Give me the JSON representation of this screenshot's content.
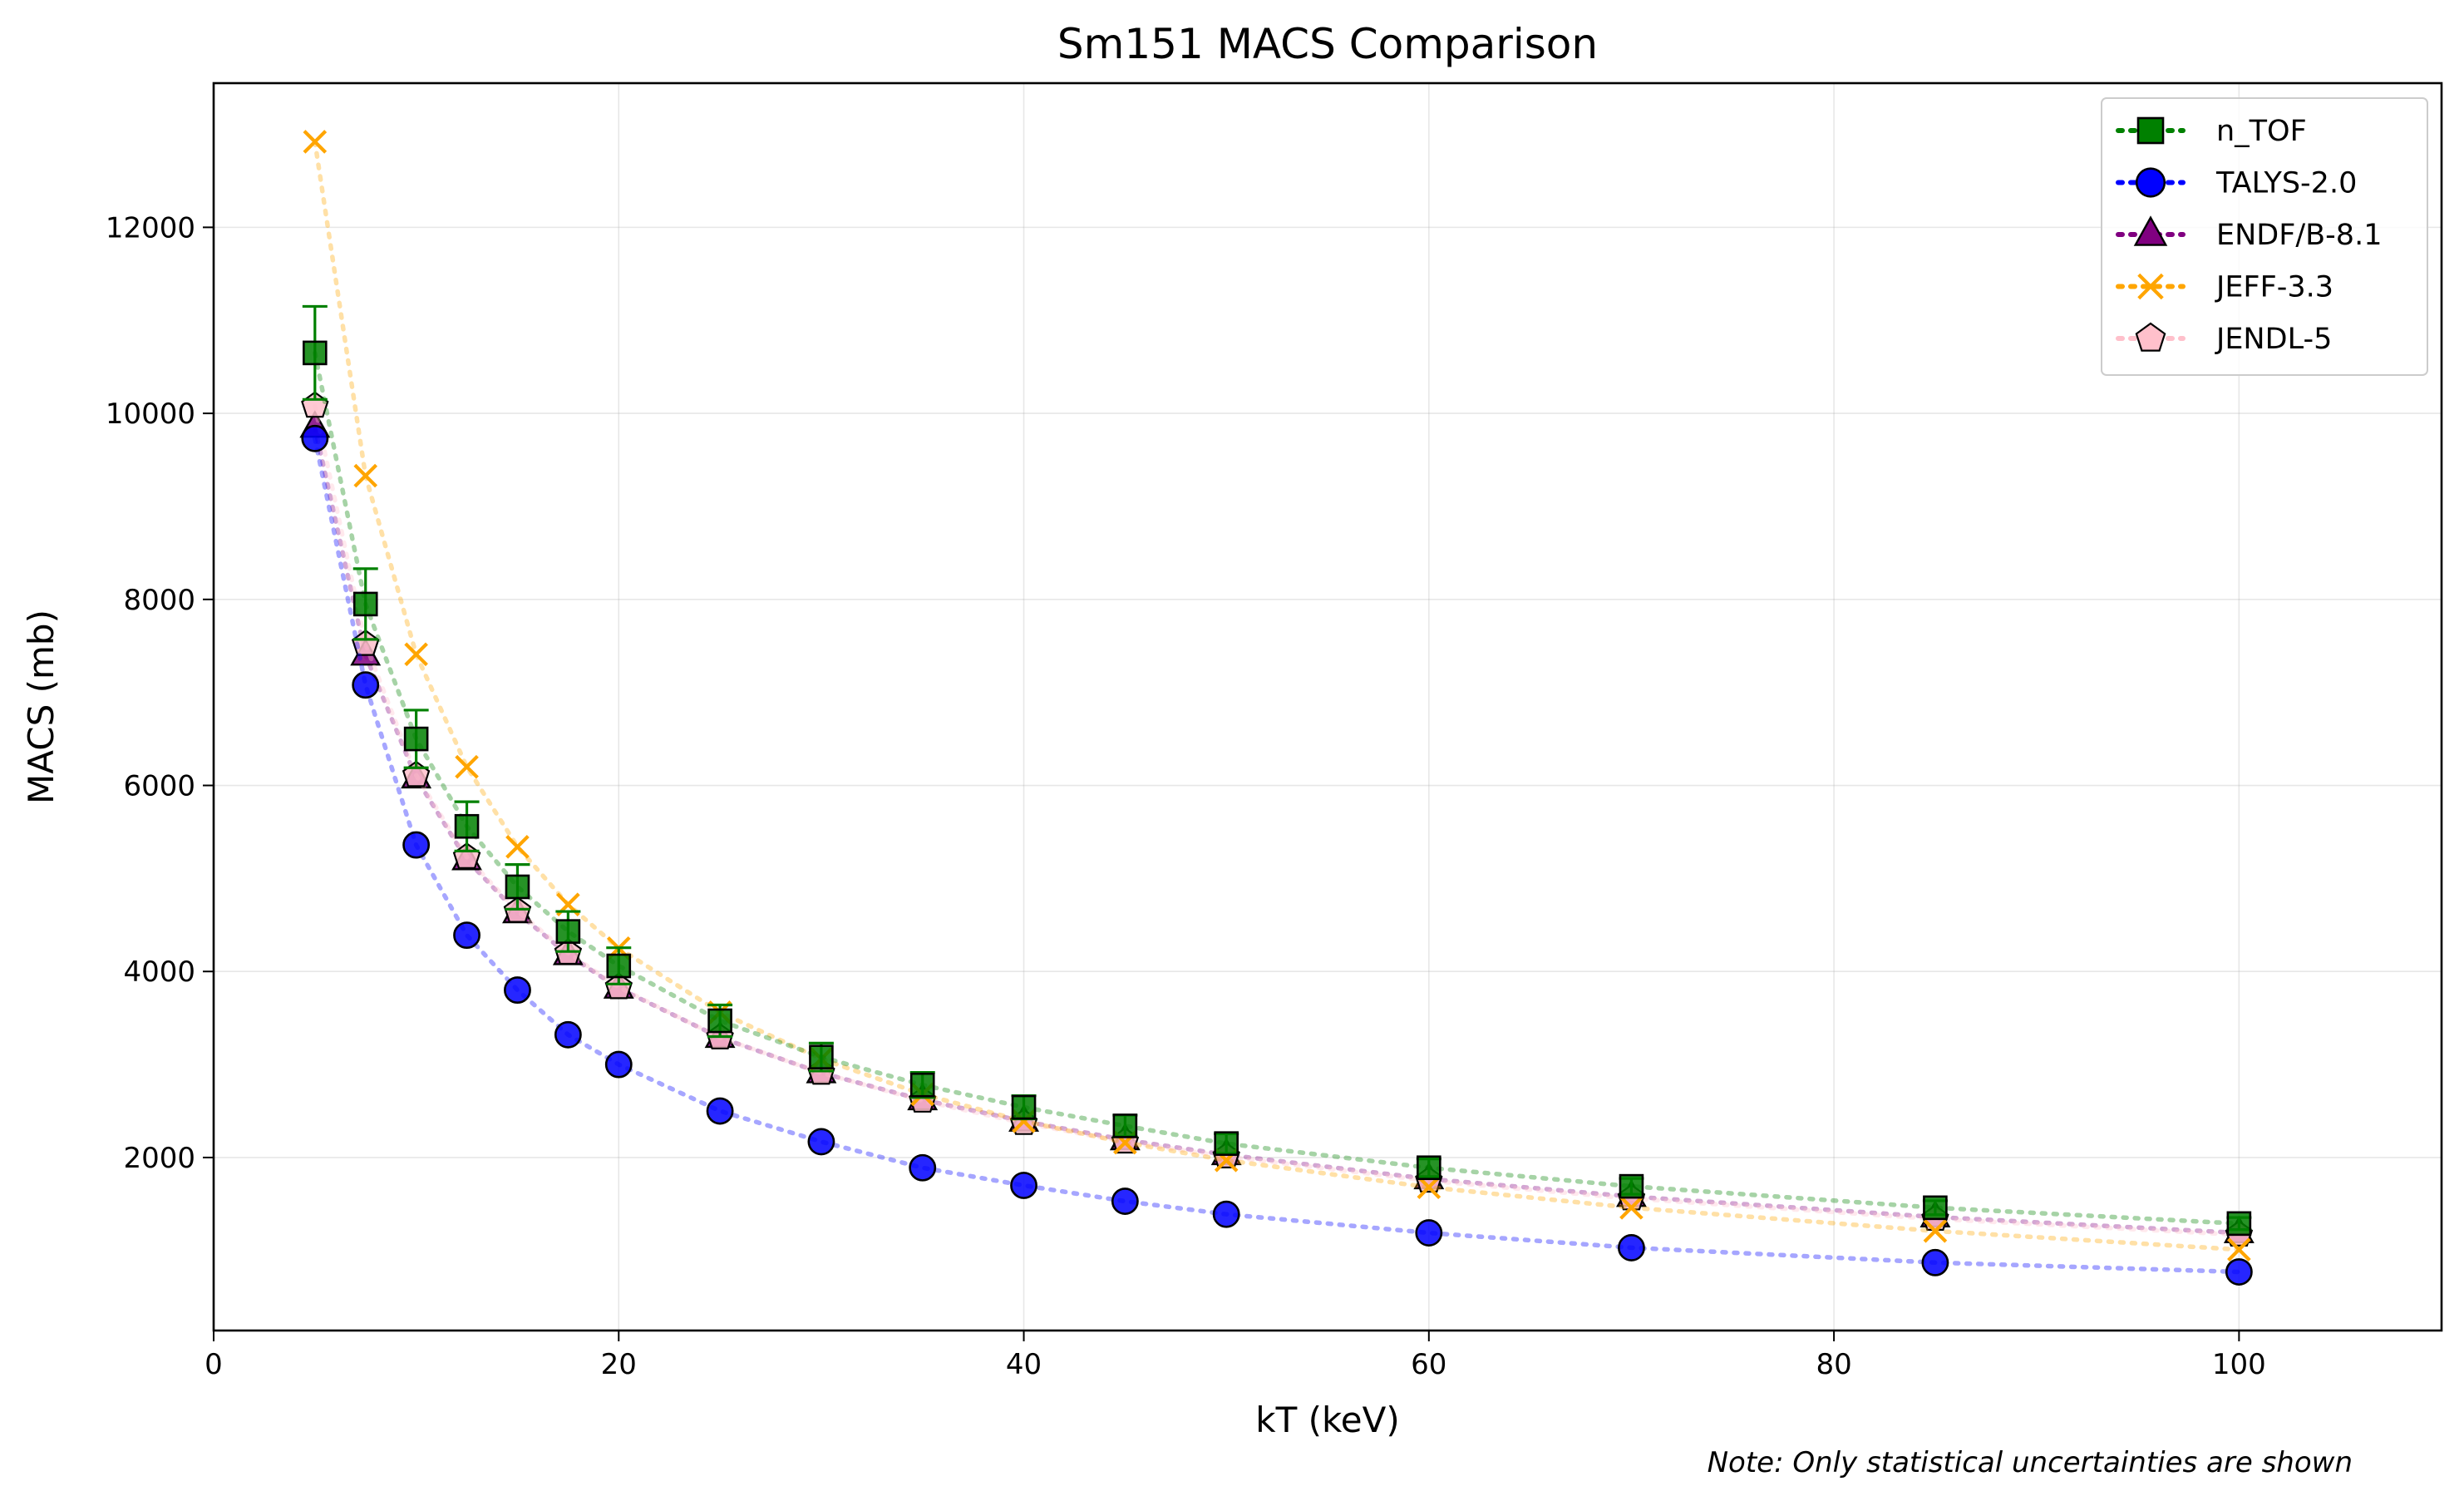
{
  "chart_data": {
    "type": "scatter",
    "title": "Sm151 MACS Comparison",
    "xlabel": "kT (keV)",
    "ylabel": "MACS (mb)",
    "note": "Note: Only statistical uncertainties are shown",
    "xlim": [
      0,
      110
    ],
    "ylim": [
      140,
      13550
    ],
    "xticks": [
      0,
      20,
      40,
      60,
      80,
      100
    ],
    "yticks": [
      2000,
      4000,
      6000,
      8000,
      10000,
      12000
    ],
    "grid": true,
    "legend_position": "top-right",
    "x": [
      5,
      7.5,
      10,
      12.5,
      15,
      17.5,
      20,
      25,
      30,
      35,
      40,
      45,
      50,
      60,
      70,
      85,
      100
    ],
    "series": [
      {
        "name": "n_TOF",
        "color": "#008000",
        "marker": "square",
        "values": [
          10650,
          7950,
          6500,
          5560,
          4910,
          4430,
          4060,
          3470,
          3080,
          2780,
          2540,
          2340,
          2150,
          1890,
          1690,
          1460,
          1290
        ],
        "errors": [
          500,
          380,
          310,
          265,
          240,
          215,
          195,
          170,
          150,
          135,
          125,
          115,
          105,
          95,
          85,
          75,
          65
        ]
      },
      {
        "name": "TALYS-2.0",
        "color": "#0000ff",
        "marker": "circle",
        "values": [
          9730,
          7080,
          5360,
          4390,
          3800,
          3320,
          3000,
          2500,
          2170,
          1890,
          1700,
          1530,
          1390,
          1190,
          1030,
          870,
          770
        ]
      },
      {
        "name": "ENDF/B-8.1",
        "color": "#800080",
        "marker": "triangle",
        "values": [
          9850,
          7400,
          6080,
          5200,
          4630,
          4180,
          3820,
          3290,
          2910,
          2620,
          2390,
          2190,
          2030,
          1770,
          1580,
          1360,
          1190
        ]
      },
      {
        "name": "JEFF-3.3",
        "color": "#ffa500",
        "marker": "x",
        "values": [
          12920,
          9330,
          7410,
          6200,
          5340,
          4720,
          4250,
          3560,
          3060,
          2680,
          2390,
          2160,
          1970,
          1680,
          1460,
          1210,
          1010
        ]
      },
      {
        "name": "JENDL-5",
        "color": "#ffc0cb",
        "marker": "pentagon",
        "values": [
          10080,
          7520,
          6110,
          5230,
          4650,
          4200,
          3830,
          3290,
          2910,
          2610,
          2370,
          2170,
          2010,
          1750,
          1560,
          1340,
          1170
        ]
      }
    ]
  }
}
